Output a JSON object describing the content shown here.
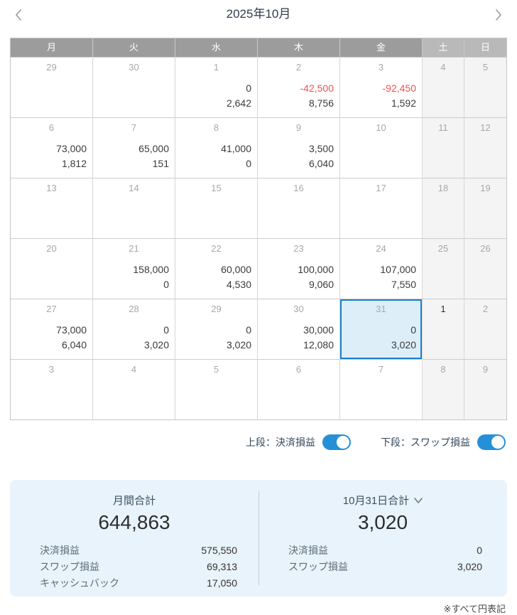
{
  "header": {
    "title": "2025年10月"
  },
  "weekdays": [
    "月",
    "火",
    "水",
    "木",
    "金",
    "土",
    "日"
  ],
  "calendar": {
    "weeks": [
      [
        {
          "d": "29"
        },
        {
          "d": "30"
        },
        {
          "d": "1",
          "v1": "0",
          "v2": "2,642"
        },
        {
          "d": "2",
          "v1": "-42,500",
          "neg1": true,
          "v2": "8,756"
        },
        {
          "d": "3",
          "v1": "-92,450",
          "neg1": true,
          "v2": "1,592"
        },
        {
          "d": "4"
        },
        {
          "d": "5"
        }
      ],
      [
        {
          "d": "6",
          "v1": "73,000",
          "v2": "1,812"
        },
        {
          "d": "7",
          "v1": "65,000",
          "v2": "151"
        },
        {
          "d": "8",
          "v1": "41,000",
          "v2": "0"
        },
        {
          "d": "9",
          "v1": "3,500",
          "v2": "6,040"
        },
        {
          "d": "10"
        },
        {
          "d": "11"
        },
        {
          "d": "12"
        }
      ],
      [
        {
          "d": "13"
        },
        {
          "d": "14"
        },
        {
          "d": "15"
        },
        {
          "d": "16"
        },
        {
          "d": "17"
        },
        {
          "d": "18"
        },
        {
          "d": "19"
        }
      ],
      [
        {
          "d": "20"
        },
        {
          "d": "21",
          "v1": "158,000",
          "v2": "0"
        },
        {
          "d": "22",
          "v1": "60,000",
          "v2": "4,530"
        },
        {
          "d": "23",
          "v1": "100,000",
          "v2": "9,060"
        },
        {
          "d": "24",
          "v1": "107,000",
          "v2": "7,550"
        },
        {
          "d": "25"
        },
        {
          "d": "26"
        }
      ],
      [
        {
          "d": "27",
          "v1": "73,000",
          "v2": "6,040"
        },
        {
          "d": "28",
          "v1": "0",
          "v2": "3,020"
        },
        {
          "d": "29",
          "v1": "0",
          "v2": "3,020"
        },
        {
          "d": "30",
          "v1": "30,000",
          "v2": "12,080"
        },
        {
          "d": "31",
          "v1": "0",
          "v2": "3,020",
          "sel": true
        },
        {
          "d": "1",
          "today": true
        },
        {
          "d": "2"
        }
      ],
      [
        {
          "d": "3"
        },
        {
          "d": "4"
        },
        {
          "d": "5"
        },
        {
          "d": "6"
        },
        {
          "d": "7"
        },
        {
          "d": "8"
        },
        {
          "d": "9"
        }
      ]
    ]
  },
  "toggles": [
    {
      "label": "上段：決済損益",
      "on": true
    },
    {
      "label": "下段：スワップ損益",
      "on": true
    }
  ],
  "summary": {
    "monthly": {
      "title": "月間合計",
      "total": "644,863",
      "rows": [
        {
          "label": "決済損益",
          "value": "575,550"
        },
        {
          "label": "スワップ損益",
          "value": "69,313"
        },
        {
          "label": "キャッシュバック",
          "value": "17,050"
        }
      ]
    },
    "daily": {
      "title": "10月31日合計",
      "total": "3,020",
      "rows": [
        {
          "label": "決済損益",
          "value": "0"
        },
        {
          "label": "スワップ損益",
          "value": "3,020"
        }
      ]
    }
  },
  "footer": {
    "note": "※すべて円表記"
  },
  "colors": {
    "accent_blue": "#1b7fce",
    "toggle_blue": "#2590d6",
    "negative_red": "#ef5350",
    "selected_cell_bg": "#ddeef9",
    "summary_bg": "#e8f3fb",
    "weekday_header_bg": "#9c9c9c",
    "weekend_header_bg": "#b9b9b9",
    "weekend_cell_bg": "#f4f4f4"
  }
}
